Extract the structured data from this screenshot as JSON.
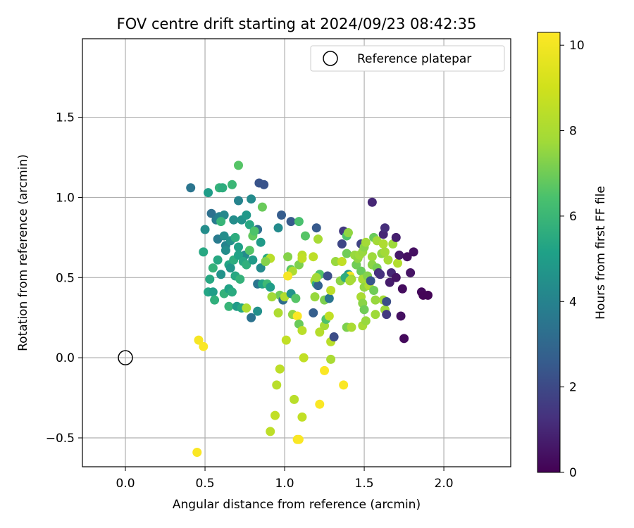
{
  "chart_data": {
    "type": "scatter",
    "title": "FOV centre drift starting at 2024/09/23 08:42:35",
    "xlabel": "Angular distance from reference (arcmin)",
    "ylabel": "Rotation from reference (arcmin)",
    "xlim": [
      -0.27,
      2.42
    ],
    "ylim": [
      -0.68,
      1.99
    ],
    "xticks": [
      0.0,
      0.5,
      1.0,
      1.5,
      2.0
    ],
    "xtick_labels": [
      "0.0",
      "0.5",
      "1.0",
      "1.5",
      "2.0"
    ],
    "yticks": [
      -0.5,
      0.0,
      0.5,
      1.0,
      1.5
    ],
    "ytick_labels": [
      "−0.5",
      "0.0",
      "0.5",
      "1.0",
      "1.5"
    ],
    "grid": true,
    "legend": {
      "placement": "upper right",
      "entries": [
        "Reference platepar"
      ]
    },
    "reference_point": {
      "x": 0.0,
      "y": 0.0,
      "label": "Reference platepar"
    },
    "colorbar": {
      "label": "Hours from first FF file",
      "colormap": "viridis",
      "range": [
        0,
        10.3
      ],
      "ticks": [
        0,
        2,
        4,
        6,
        8,
        10
      ],
      "tick_labels": [
        "0",
        "2",
        "4",
        "6",
        "8",
        "10"
      ]
    },
    "series": [
      {
        "points": [
          {
            "x": 0.41,
            "y": 1.06,
            "h": 3.5
          },
          {
            "x": 0.52,
            "y": 1.03,
            "h": 5.0
          },
          {
            "x": 0.59,
            "y": 1.06,
            "h": 5.8
          },
          {
            "x": 0.61,
            "y": 1.06,
            "h": 5.6
          },
          {
            "x": 0.67,
            "y": 1.08,
            "h": 6.0
          },
          {
            "x": 0.71,
            "y": 1.2,
            "h": 6.6
          },
          {
            "x": 0.84,
            "y": 1.09,
            "h": 2.3
          },
          {
            "x": 0.87,
            "y": 1.08,
            "h": 2.3
          },
          {
            "x": 0.54,
            "y": 0.9,
            "h": 3.3
          },
          {
            "x": 0.57,
            "y": 0.86,
            "h": 3.7
          },
          {
            "x": 0.59,
            "y": 0.88,
            "h": 3.9
          },
          {
            "x": 0.62,
            "y": 0.89,
            "h": 4.2
          },
          {
            "x": 0.68,
            "y": 0.86,
            "h": 4.4
          },
          {
            "x": 0.71,
            "y": 0.98,
            "h": 4.0
          },
          {
            "x": 0.73,
            "y": 0.86,
            "h": 4.6
          },
          {
            "x": 0.76,
            "y": 0.89,
            "h": 4.8
          },
          {
            "x": 0.79,
            "y": 0.99,
            "h": 4.3
          },
          {
            "x": 0.86,
            "y": 0.94,
            "h": 6.9
          },
          {
            "x": 0.78,
            "y": 0.83,
            "h": 5.4
          },
          {
            "x": 0.83,
            "y": 0.8,
            "h": 3.3
          },
          {
            "x": 0.5,
            "y": 0.8,
            "h": 4.4
          },
          {
            "x": 0.58,
            "y": 0.74,
            "h": 3.7
          },
          {
            "x": 0.6,
            "y": 0.85,
            "h": 5.9
          },
          {
            "x": 0.62,
            "y": 0.76,
            "h": 4.4
          },
          {
            "x": 0.63,
            "y": 0.7,
            "h": 4.0
          },
          {
            "x": 0.66,
            "y": 0.73,
            "h": 4.5
          },
          {
            "x": 0.69,
            "y": 0.75,
            "h": 5.6
          },
          {
            "x": 0.71,
            "y": 0.69,
            "h": 5.1
          },
          {
            "x": 0.75,
            "y": 0.64,
            "h": 4.3
          },
          {
            "x": 0.8,
            "y": 0.76,
            "h": 6.8
          },
          {
            "x": 0.81,
            "y": 0.79,
            "h": 6.5
          },
          {
            "x": 0.85,
            "y": 0.72,
            "h": 4.9
          },
          {
            "x": 0.49,
            "y": 0.66,
            "h": 5.4
          },
          {
            "x": 0.55,
            "y": 0.56,
            "h": 5.8
          },
          {
            "x": 0.58,
            "y": 0.61,
            "h": 5.4
          },
          {
            "x": 0.63,
            "y": 0.67,
            "h": 4.4
          },
          {
            "x": 0.65,
            "y": 0.58,
            "h": 5.3
          },
          {
            "x": 0.66,
            "y": 0.56,
            "h": 4.7
          },
          {
            "x": 0.68,
            "y": 0.61,
            "h": 5.6
          },
          {
            "x": 0.71,
            "y": 0.64,
            "h": 5.2
          },
          {
            "x": 0.74,
            "y": 0.6,
            "h": 5.4
          },
          {
            "x": 0.76,
            "y": 0.58,
            "h": 5.7
          },
          {
            "x": 0.78,
            "y": 0.67,
            "h": 6.6
          },
          {
            "x": 0.8,
            "y": 0.61,
            "h": 4.9
          },
          {
            "x": 0.53,
            "y": 0.49,
            "h": 5.4
          },
          {
            "x": 0.6,
            "y": 0.52,
            "h": 4.6
          },
          {
            "x": 0.69,
            "y": 0.51,
            "h": 5.4
          },
          {
            "x": 0.72,
            "y": 0.49,
            "h": 5.8
          },
          {
            "x": 0.85,
            "y": 0.56,
            "h": 4.3
          },
          {
            "x": 0.83,
            "y": 0.46,
            "h": 3.5
          },
          {
            "x": 0.86,
            "y": 0.46,
            "h": 5.2
          },
          {
            "x": 0.89,
            "y": 0.46,
            "h": 6.1
          },
          {
            "x": 0.52,
            "y": 0.41,
            "h": 5.3
          },
          {
            "x": 0.55,
            "y": 0.41,
            "h": 5.0
          },
          {
            "x": 0.56,
            "y": 0.36,
            "h": 5.7
          },
          {
            "x": 0.62,
            "y": 0.4,
            "h": 5.8
          },
          {
            "x": 0.65,
            "y": 0.43,
            "h": 5.2
          },
          {
            "x": 0.67,
            "y": 0.41,
            "h": 5.5
          },
          {
            "x": 0.65,
            "y": 0.32,
            "h": 5.9
          },
          {
            "x": 0.7,
            "y": 0.32,
            "h": 4.9
          },
          {
            "x": 0.73,
            "y": 0.31,
            "h": 5.4
          },
          {
            "x": 0.76,
            "y": 0.31,
            "h": 8.1
          },
          {
            "x": 0.79,
            "y": 0.25,
            "h": 3.4
          },
          {
            "x": 0.83,
            "y": 0.29,
            "h": 4.5
          },
          {
            "x": 0.91,
            "y": 0.44,
            "h": 5.0
          },
          {
            "x": 0.96,
            "y": 0.81,
            "h": 4.3
          },
          {
            "x": 0.98,
            "y": 0.89,
            "h": 2.6
          },
          {
            "x": 1.04,
            "y": 0.85,
            "h": 2.5
          },
          {
            "x": 1.09,
            "y": 0.85,
            "h": 6.4
          },
          {
            "x": 0.89,
            "y": 0.62,
            "h": 5.5
          },
          {
            "x": 0.91,
            "y": 0.62,
            "h": 8.4
          },
          {
            "x": 0.88,
            "y": 0.6,
            "h": 7.3
          },
          {
            "x": 1.02,
            "y": 0.63,
            "h": 7.3
          },
          {
            "x": 1.04,
            "y": 0.55,
            "h": 6.7
          },
          {
            "x": 1.05,
            "y": 0.54,
            "h": 8.1
          },
          {
            "x": 1.09,
            "y": 0.58,
            "h": 7.2
          },
          {
            "x": 1.11,
            "y": 0.64,
            "h": 8.4
          },
          {
            "x": 1.13,
            "y": 0.76,
            "h": 6.6
          },
          {
            "x": 1.11,
            "y": 0.62,
            "h": 8.6
          },
          {
            "x": 0.97,
            "y": 0.39,
            "h": 7.0
          },
          {
            "x": 0.99,
            "y": 0.36,
            "h": 3.2
          },
          {
            "x": 1.0,
            "y": 0.38,
            "h": 8.2
          },
          {
            "x": 1.02,
            "y": 0.51,
            "h": 10.1
          },
          {
            "x": 1.04,
            "y": 0.4,
            "h": 4.6
          },
          {
            "x": 1.07,
            "y": 0.37,
            "h": 6.6
          },
          {
            "x": 0.92,
            "y": 0.38,
            "h": 7.8
          },
          {
            "x": 0.96,
            "y": 0.28,
            "h": 8.1
          },
          {
            "x": 1.05,
            "y": 0.27,
            "h": 7.5
          },
          {
            "x": 1.08,
            "y": 0.26,
            "h": 10.2
          },
          {
            "x": 1.09,
            "y": 0.21,
            "h": 6.9
          },
          {
            "x": 1.11,
            "y": 0.17,
            "h": 8.4
          },
          {
            "x": 1.01,
            "y": 0.11,
            "h": 8.6
          },
          {
            "x": 1.12,
            "y": 0.0,
            "h": 8.6
          },
          {
            "x": 0.97,
            "y": -0.07,
            "h": 8.5
          },
          {
            "x": 0.95,
            "y": -0.17,
            "h": 8.4
          },
          {
            "x": 1.06,
            "y": -0.26,
            "h": 8.4
          },
          {
            "x": 0.94,
            "y": -0.36,
            "h": 8.6
          },
          {
            "x": 0.91,
            "y": -0.46,
            "h": 8.5
          },
          {
            "x": 1.11,
            "y": -0.37,
            "h": 8.6
          },
          {
            "x": 1.08,
            "y": -0.51,
            "h": 10.1
          },
          {
            "x": 1.09,
            "y": -0.51,
            "h": 10.2
          },
          {
            "x": 1.22,
            "y": -0.29,
            "h": 10.2
          },
          {
            "x": 1.25,
            "y": -0.08,
            "h": 10.2
          },
          {
            "x": 1.37,
            "y": -0.17,
            "h": 10.2
          },
          {
            "x": 0.46,
            "y": 0.11,
            "h": 10.1
          },
          {
            "x": 0.49,
            "y": 0.07,
            "h": 10.2
          },
          {
            "x": 0.45,
            "y": -0.59,
            "h": 10.2
          },
          {
            "x": 1.2,
            "y": 0.81,
            "h": 2.5
          },
          {
            "x": 1.21,
            "y": 0.74,
            "h": 7.9
          },
          {
            "x": 1.18,
            "y": 0.63,
            "h": 8.5
          },
          {
            "x": 1.22,
            "y": 0.52,
            "h": 6.5
          },
          {
            "x": 1.19,
            "y": 0.48,
            "h": 8.0
          },
          {
            "x": 1.2,
            "y": 0.46,
            "h": 5.6
          },
          {
            "x": 1.21,
            "y": 0.45,
            "h": 2.8
          },
          {
            "x": 1.19,
            "y": 0.38,
            "h": 7.6
          },
          {
            "x": 1.18,
            "y": 0.28,
            "h": 2.7
          },
          {
            "x": 1.22,
            "y": 0.16,
            "h": 8.3
          },
          {
            "x": 1.25,
            "y": 0.2,
            "h": 7.9
          },
          {
            "x": 1.26,
            "y": 0.24,
            "h": 6.5
          },
          {
            "x": 1.25,
            "y": 0.36,
            "h": 7.2
          },
          {
            "x": 1.28,
            "y": 0.37,
            "h": 3.5
          },
          {
            "x": 1.29,
            "y": 0.42,
            "h": 8.5
          },
          {
            "x": 1.28,
            "y": 0.26,
            "h": 8.6
          },
          {
            "x": 1.29,
            "y": 0.1,
            "h": 8.4
          },
          {
            "x": 1.29,
            "y": -0.01,
            "h": 8.0
          },
          {
            "x": 1.27,
            "y": 0.51,
            "h": 2.2
          },
          {
            "x": 1.31,
            "y": 0.13,
            "h": 2.1
          },
          {
            "x": 1.32,
            "y": 0.6,
            "h": 7.6
          },
          {
            "x": 1.35,
            "y": 0.48,
            "h": 7.4
          },
          {
            "x": 1.36,
            "y": 0.6,
            "h": 8.6
          },
          {
            "x": 1.36,
            "y": 0.71,
            "h": 1.9
          },
          {
            "x": 1.37,
            "y": 0.79,
            "h": 1.5
          },
          {
            "x": 1.39,
            "y": 0.76,
            "h": 6.5
          },
          {
            "x": 1.4,
            "y": 0.78,
            "h": 7.5
          },
          {
            "x": 1.39,
            "y": 0.65,
            "h": 7.0
          },
          {
            "x": 1.4,
            "y": 0.52,
            "h": 4.9
          },
          {
            "x": 1.41,
            "y": 0.51,
            "h": 10.0
          },
          {
            "x": 1.38,
            "y": 0.5,
            "h": 5.6
          },
          {
            "x": 1.42,
            "y": 0.49,
            "h": 7.8
          },
          {
            "x": 1.41,
            "y": 0.48,
            "h": 7.9
          },
          {
            "x": 1.39,
            "y": 0.19,
            "h": 7.2
          },
          {
            "x": 1.42,
            "y": 0.19,
            "h": 8.0
          },
          {
            "x": 1.44,
            "y": 0.64,
            "h": 7.6
          },
          {
            "x": 1.45,
            "y": 0.58,
            "h": 7.0
          },
          {
            "x": 1.46,
            "y": 0.62,
            "h": 7.5
          },
          {
            "x": 1.47,
            "y": 0.64,
            "h": 7.7
          },
          {
            "x": 1.48,
            "y": 0.71,
            "h": 1.8
          },
          {
            "x": 1.49,
            "y": 0.66,
            "h": 7.6
          },
          {
            "x": 1.5,
            "y": 0.69,
            "h": 7.4
          },
          {
            "x": 1.51,
            "y": 0.72,
            "h": 7.8
          },
          {
            "x": 1.48,
            "y": 0.54,
            "h": 6.9
          },
          {
            "x": 1.49,
            "y": 0.49,
            "h": 7.9
          },
          {
            "x": 1.5,
            "y": 0.44,
            "h": 7.5
          },
          {
            "x": 1.48,
            "y": 0.38,
            "h": 8.0
          },
          {
            "x": 1.49,
            "y": 0.34,
            "h": 7.4
          },
          {
            "x": 1.5,
            "y": 0.3,
            "h": 7.0
          },
          {
            "x": 1.49,
            "y": 0.2,
            "h": 7.9
          },
          {
            "x": 1.51,
            "y": 0.23,
            "h": 7.6
          },
          {
            "x": 1.52,
            "y": 0.51,
            "h": 7.3
          },
          {
            "x": 1.53,
            "y": 0.45,
            "h": 8.1
          },
          {
            "x": 1.54,
            "y": 0.48,
            "h": 2.4
          },
          {
            "x": 1.55,
            "y": 0.63,
            "h": 7.7
          },
          {
            "x": 1.55,
            "y": 0.58,
            "h": 7.4
          },
          {
            "x": 1.56,
            "y": 0.75,
            "h": 6.9
          },
          {
            "x": 1.55,
            "y": 0.97,
            "h": 1.0
          },
          {
            "x": 1.56,
            "y": 0.42,
            "h": 7.0
          },
          {
            "x": 1.57,
            "y": 0.36,
            "h": 7.6
          },
          {
            "x": 1.58,
            "y": 0.73,
            "h": 7.8
          },
          {
            "x": 1.58,
            "y": 0.56,
            "h": 7.1
          },
          {
            "x": 1.57,
            "y": 0.27,
            "h": 7.7
          },
          {
            "x": 1.59,
            "y": 0.53,
            "h": 1.2
          },
          {
            "x": 1.6,
            "y": 0.52,
            "h": 1.3
          },
          {
            "x": 1.61,
            "y": 0.65,
            "h": 7.5
          },
          {
            "x": 1.62,
            "y": 0.77,
            "h": 1.0
          },
          {
            "x": 1.62,
            "y": 0.71,
            "h": 8.1
          },
          {
            "x": 1.63,
            "y": 0.81,
            "h": 1.2
          },
          {
            "x": 1.63,
            "y": 0.66,
            "h": 7.8
          },
          {
            "x": 1.62,
            "y": 0.36,
            "h": 7.8
          },
          {
            "x": 1.63,
            "y": 0.3,
            "h": 7.7
          },
          {
            "x": 1.64,
            "y": 0.35,
            "h": 2.1
          },
          {
            "x": 1.64,
            "y": 0.27,
            "h": 1.5
          },
          {
            "x": 1.65,
            "y": 0.61,
            "h": 7.9
          },
          {
            "x": 1.66,
            "y": 0.47,
            "h": 0.7
          },
          {
            "x": 1.67,
            "y": 0.53,
            "h": 1.0
          },
          {
            "x": 1.68,
            "y": 0.71,
            "h": 7.7
          },
          {
            "x": 1.7,
            "y": 0.5,
            "h": 0.5
          },
          {
            "x": 1.71,
            "y": 0.59,
            "h": 8.2
          },
          {
            "x": 1.7,
            "y": 0.75,
            "h": 0.8
          },
          {
            "x": 1.72,
            "y": 0.64,
            "h": 0.6
          },
          {
            "x": 1.73,
            "y": 0.26,
            "h": 0.4
          },
          {
            "x": 1.74,
            "y": 0.43,
            "h": 0.3
          },
          {
            "x": 1.75,
            "y": 0.12,
            "h": 0.2
          },
          {
            "x": 1.77,
            "y": 0.63,
            "h": 0.4
          },
          {
            "x": 1.79,
            "y": 0.53,
            "h": 0.5
          },
          {
            "x": 1.81,
            "y": 0.66,
            "h": 0.4
          },
          {
            "x": 1.86,
            "y": 0.41,
            "h": 0.2
          },
          {
            "x": 1.87,
            "y": 0.39,
            "h": 0.1
          },
          {
            "x": 1.9,
            "y": 0.39,
            "h": 0.1
          },
          {
            "x": 1.2,
            "y": 0.5,
            "h": 7.8
          }
        ]
      }
    ]
  }
}
